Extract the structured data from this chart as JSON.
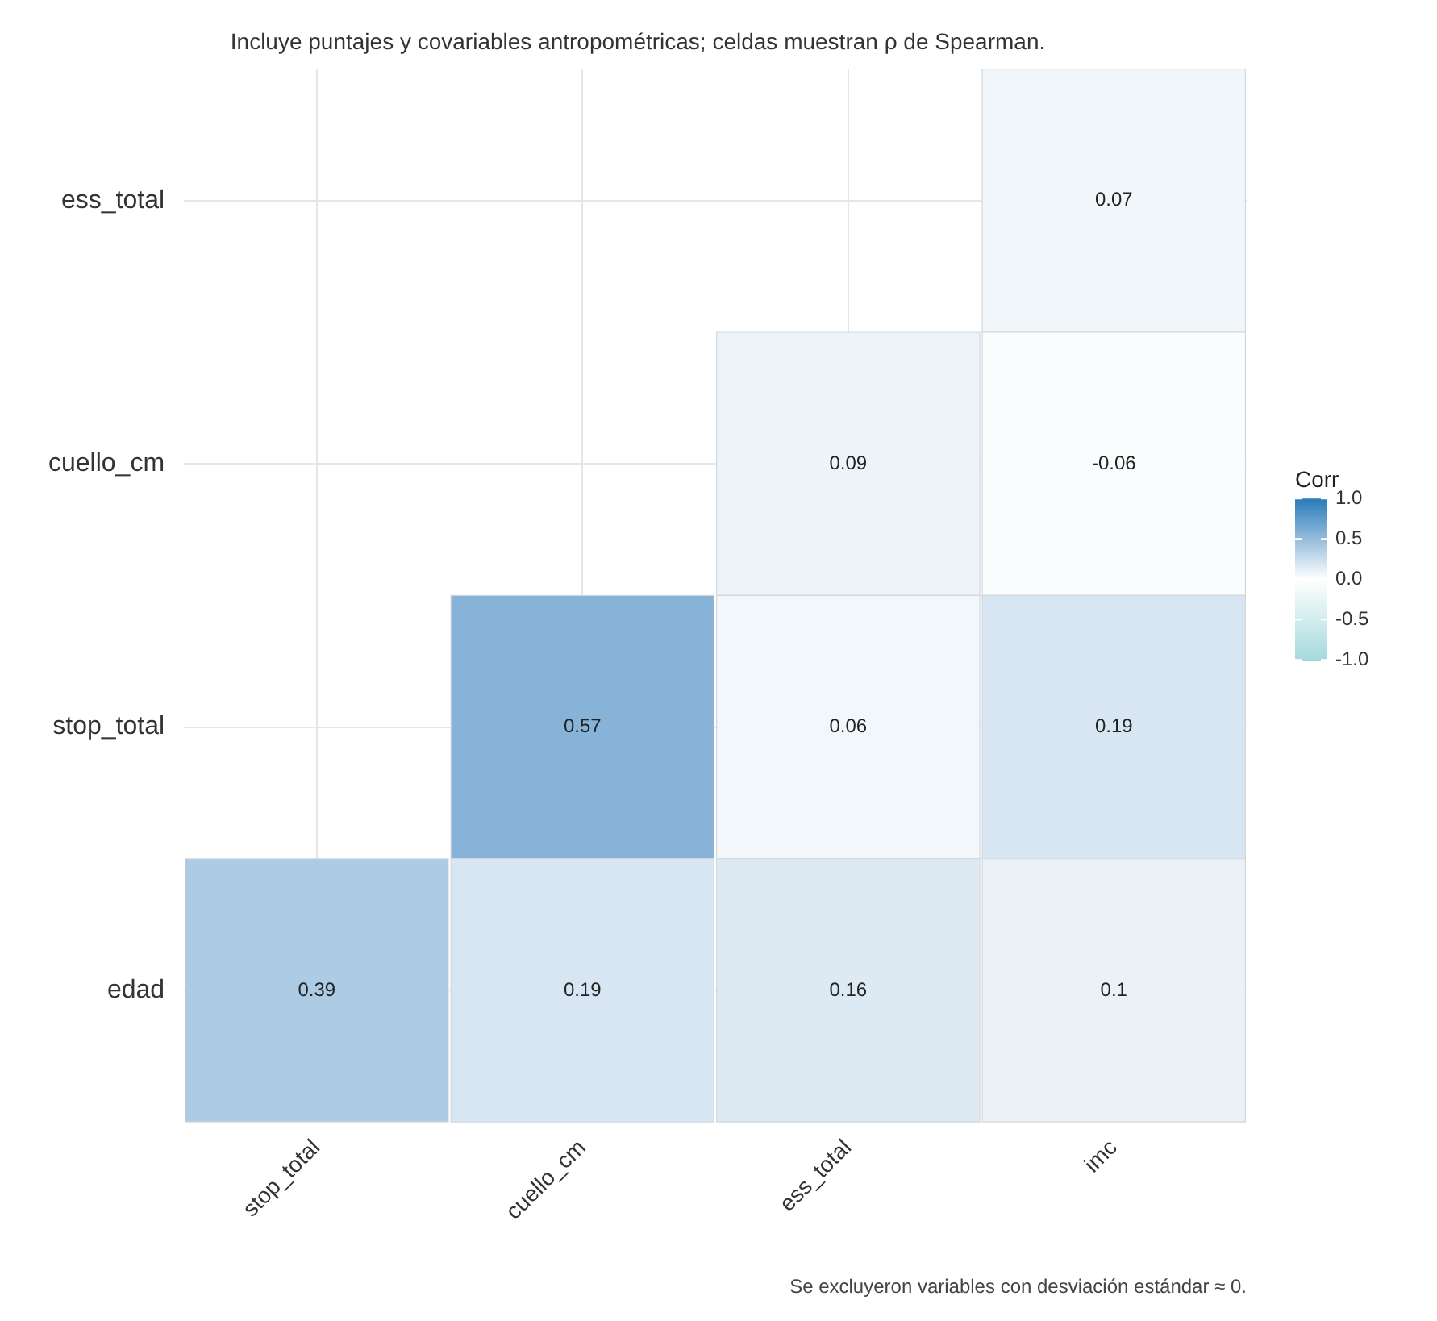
{
  "chart_data": {
    "type": "heatmap",
    "subtitle": "Incluye puntajes y covariables antropométricas; celdas muestran ρ de Spearman.",
    "categories": [
      "stop_total",
      "cuello_cm",
      "ess_total",
      "imc"
    ],
    "y_categories": [
      "ess_total",
      "cuello_cm",
      "stop_total",
      "edad"
    ],
    "cells": [
      [
        null,
        null,
        null,
        0.07
      ],
      [
        null,
        null,
        0.09,
        -0.06
      ],
      [
        null,
        0.57,
        0.06,
        0.19
      ],
      [
        0.39,
        0.19,
        0.16,
        0.1
      ]
    ],
    "data_labels": true,
    "grid": true,
    "clabel": "Corr",
    "clim": [
      -1,
      1
    ],
    "cticks": [
      {
        "value": 1,
        "label": "1.0"
      },
      {
        "value": 0.5,
        "label": "0.5"
      },
      {
        "value": 0,
        "label": "0.0"
      },
      {
        "value": -0.5,
        "label": "-0.5"
      },
      {
        "value": -1,
        "label": "-1.0"
      }
    ],
    "annotations": [
      "Se excluyeron variables con desviación estándar ≈ 0."
    ]
  }
}
